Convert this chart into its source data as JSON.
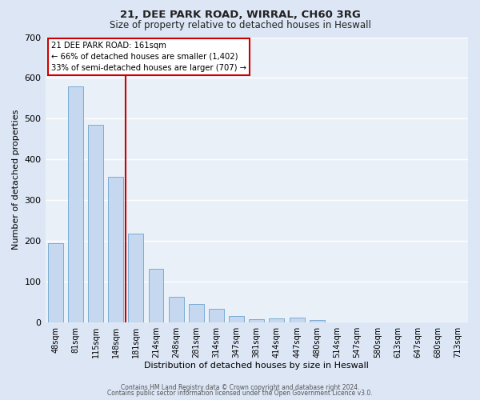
{
  "title1": "21, DEE PARK ROAD, WIRRAL, CH60 3RG",
  "title2": "Size of property relative to detached houses in Heswall",
  "xlabel": "Distribution of detached houses by size in Heswall",
  "ylabel": "Number of detached properties",
  "bar_labels": [
    "48sqm",
    "81sqm",
    "115sqm",
    "148sqm",
    "181sqm",
    "214sqm",
    "248sqm",
    "281sqm",
    "314sqm",
    "347sqm",
    "381sqm",
    "414sqm",
    "447sqm",
    "480sqm",
    "514sqm",
    "547sqm",
    "580sqm",
    "613sqm",
    "647sqm",
    "680sqm",
    "713sqm"
  ],
  "bar_values": [
    193,
    580,
    484,
    358,
    217,
    132,
    62,
    44,
    33,
    15,
    7,
    10,
    11,
    6,
    0,
    0,
    0,
    0,
    0,
    0,
    0
  ],
  "bar_color": "#c5d8ef",
  "bar_edge_color": "#7aadd4",
  "vline_color": "#cc0000",
  "annotation_title": "21 DEE PARK ROAD: 161sqm",
  "annotation_line1": "← 66% of detached houses are smaller (1,402)",
  "annotation_line2": "33% of semi-detached houses are larger (707) →",
  "annotation_box_color": "#ffffff",
  "annotation_box_edge": "#cc0000",
  "ylim": [
    0,
    700
  ],
  "yticks": [
    0,
    100,
    200,
    300,
    400,
    500,
    600,
    700
  ],
  "footer1": "Contains HM Land Registry data © Crown copyright and database right 2024.",
  "footer2": "Contains public sector information licensed under the Open Government Licence v3.0.",
  "bg_color": "#dce6f5",
  "plot_bg_color": "#eaf0f8"
}
